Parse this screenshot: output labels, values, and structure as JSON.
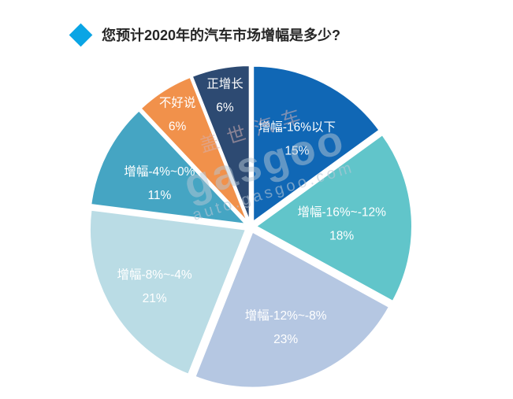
{
  "header": {
    "title": "您预计2020年的汽车市场增幅是多少?",
    "diamond_icon_color": "#0aa5e5"
  },
  "watermark": {
    "brand_cn": "盖世汽车",
    "brand_en": "gasgoo",
    "site": "auto.gasgoo.com"
  },
  "chart_data": {
    "type": "pie",
    "title": "您预计2020年的汽车市场增幅是多少?",
    "start_angle_deg": -90,
    "direction": "clockwise",
    "legend_position": "none",
    "label_position": "inside",
    "label_color": "#ffffff",
    "slices": [
      {
        "label": "增幅-16%以下",
        "value": 15,
        "color": "#1067b5",
        "label_r": 0.62
      },
      {
        "label": "增幅-16%~-12%",
        "value": 18,
        "color": "#61c5ca",
        "label_r": 0.55
      },
      {
        "label": "增幅-12%~-8%",
        "value": 23,
        "color": "#b5c7e2",
        "label_r": 0.63
      },
      {
        "label": "增幅-8%~-4%",
        "value": 21,
        "color": "#badce5",
        "label_r": 0.68
      },
      {
        "label": "增幅-4%~0%",
        "value": 11,
        "color": "#45a5c3",
        "label_r": 0.62
      },
      {
        "label": "不好说",
        "value": 6,
        "color": "#f1914b",
        "label_r": 0.84
      },
      {
        "label": "正增长",
        "value": 6,
        "color": "#2d4a72",
        "label_r": 0.84
      }
    ]
  }
}
